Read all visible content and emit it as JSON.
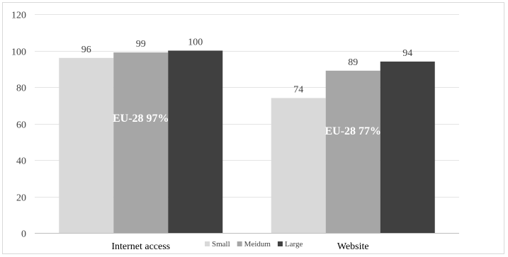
{
  "chart_data": {
    "type": "bar",
    "categories": [
      "Internet access",
      "Website"
    ],
    "series": [
      {
        "name": "Small",
        "values": [
          96,
          74
        ],
        "color": "#d9d9d9"
      },
      {
        "name": "Meidum",
        "values": [
          99,
          89
        ],
        "color": "#a6a6a6"
      },
      {
        "name": "Large",
        "values": [
          100,
          94
        ],
        "color": "#404040"
      }
    ],
    "ylim": [
      0,
      120
    ],
    "yticks": [
      0,
      20,
      40,
      60,
      80,
      100,
      120
    ],
    "grid": true,
    "legend_position": "bottom",
    "annotations": [
      {
        "text": "EU-28 97%",
        "category": "Internet access"
      },
      {
        "text": "EU-28 77%",
        "category": "Website"
      }
    ]
  }
}
